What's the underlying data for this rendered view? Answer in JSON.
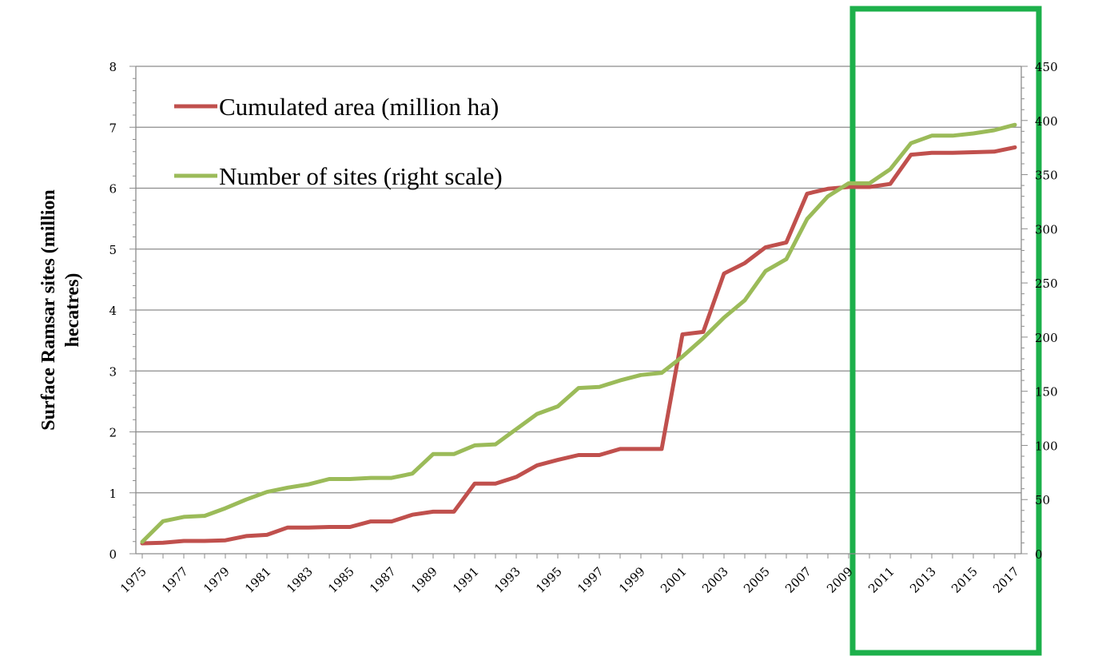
{
  "chart_data": {
    "type": "line",
    "title": "",
    "xlabel": "",
    "ylabel_lines": [
      "Surface Ramsar sites (million",
      "hecatres)"
    ],
    "y_left": {
      "lim": [
        0,
        8
      ],
      "ticks": [
        "0",
        "1",
        "2",
        "3",
        "4",
        "5",
        "6",
        "7",
        "8"
      ]
    },
    "y_right": {
      "lim": [
        0,
        450
      ],
      "ticks": [
        "0",
        "50",
        "100",
        "150",
        "200",
        "250",
        "300",
        "350",
        "400",
        "450"
      ]
    },
    "x_ticks": [
      "1975",
      "1977",
      "1979",
      "1981",
      "1983",
      "1985",
      "1987",
      "1989",
      "1991",
      "1993",
      "1995",
      "1997",
      "1999",
      "2001",
      "2003",
      "2005",
      "2007",
      "2009",
      "2011",
      "2013",
      "2015",
      "2017"
    ],
    "x": [
      1975,
      1976,
      1977,
      1978,
      1979,
      1980,
      1981,
      1982,
      1983,
      1984,
      1985,
      1986,
      1987,
      1988,
      1989,
      1990,
      1991,
      1992,
      1993,
      1994,
      1995,
      1996,
      1997,
      1998,
      1999,
      2000,
      2001,
      2002,
      2003,
      2004,
      2005,
      2006,
      2007,
      2008,
      2009,
      2010,
      2011,
      2012,
      2013,
      2014,
      2015,
      2016,
      2017
    ],
    "grid": "horizontal",
    "legend_position": "top-left",
    "highlight_range": [
      2010,
      2017
    ],
    "highlight_color": "#1db04b",
    "series": [
      {
        "name": "Cumulated area (million ha)",
        "axis": "left",
        "color": "#c0504d",
        "values": [
          0.17,
          0.18,
          0.21,
          0.21,
          0.22,
          0.29,
          0.31,
          0.43,
          0.43,
          0.44,
          0.44,
          0.53,
          0.53,
          0.64,
          0.69,
          0.69,
          1.15,
          1.15,
          1.26,
          1.45,
          1.54,
          1.62,
          1.62,
          1.72,
          1.72,
          1.72,
          3.6,
          3.64,
          4.6,
          4.77,
          5.03,
          5.11,
          5.91,
          5.99,
          6.02,
          6.02,
          6.07,
          6.55,
          6.58,
          6.58,
          6.59,
          6.6,
          6.67
        ]
      },
      {
        "name": "Number of sites (right scale)",
        "axis": "right",
        "color": "#9bbb59",
        "values": [
          11,
          30,
          34,
          35,
          42,
          50,
          57,
          61,
          64,
          69,
          69,
          70,
          70,
          74,
          92,
          92,
          100,
          101,
          115,
          129,
          136,
          153,
          154,
          160,
          165,
          167,
          182,
          199,
          218,
          234,
          261,
          272,
          309,
          330,
          342,
          342,
          355,
          379,
          386,
          386,
          388,
          391,
          396
        ]
      }
    ]
  }
}
